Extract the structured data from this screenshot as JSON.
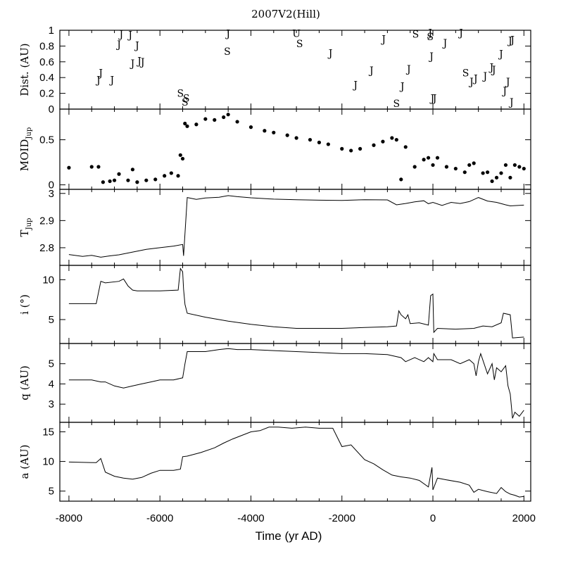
{
  "chart_data": {
    "type": "multi-panel-line-scatter",
    "title": "2007V2(Hill)",
    "xlabel": "Time (yr AD)",
    "xlim": [
      -8200,
      2150
    ],
    "xticks": [
      -8000,
      -6000,
      -4000,
      -2000,
      0,
      2000
    ],
    "xtick_labels": [
      "-8000",
      "-6000",
      "-4000",
      "-2000",
      "0",
      "2000"
    ],
    "panels": [
      {
        "id": "dist",
        "ylabel": "Dist. (AU)",
        "type": "scatter-text",
        "ylim": [
          0,
          1
        ],
        "yticks": [
          0,
          0.2,
          0.4,
          0.6,
          0.8,
          1
        ],
        "ytick_labels": [
          "0",
          "0.2",
          "0.4",
          "0.6",
          "0.8",
          "1"
        ],
        "encounters": [
          {
            "x": -7350,
            "y": 0.37,
            "planet": "J"
          },
          {
            "x": -7300,
            "y": 0.46,
            "planet": "J"
          },
          {
            "x": -7050,
            "y": 0.37,
            "planet": "J"
          },
          {
            "x": -6900,
            "y": 0.82,
            "planet": "J"
          },
          {
            "x": -6850,
            "y": 0.95,
            "planet": "J"
          },
          {
            "x": -6650,
            "y": 0.94,
            "planet": "J"
          },
          {
            "x": -6600,
            "y": 0.58,
            "planet": "J"
          },
          {
            "x": -6500,
            "y": 0.81,
            "planet": "J"
          },
          {
            "x": -6450,
            "y": 0.61,
            "planet": "J"
          },
          {
            "x": -6380,
            "y": 0.6,
            "planet": "J"
          },
          {
            "x": -5550,
            "y": 0.2,
            "planet": "S"
          },
          {
            "x": -5450,
            "y": 0.09,
            "planet": "S"
          },
          {
            "x": -5420,
            "y": 0.14,
            "planet": "S"
          },
          {
            "x": -4500,
            "y": 0.96,
            "planet": "J"
          },
          {
            "x": -4520,
            "y": 0.73,
            "planet": "S"
          },
          {
            "x": -3000,
            "y": 0.96,
            "planet": "U"
          },
          {
            "x": -2930,
            "y": 0.83,
            "planet": "S"
          },
          {
            "x": -2250,
            "y": 0.71,
            "planet": "J"
          },
          {
            "x": -1700,
            "y": 0.31,
            "planet": "J"
          },
          {
            "x": -1350,
            "y": 0.49,
            "planet": "J"
          },
          {
            "x": -1080,
            "y": 0.89,
            "planet": "J"
          },
          {
            "x": -800,
            "y": 0.07,
            "planet": "S"
          },
          {
            "x": -670,
            "y": 0.29,
            "planet": "J"
          },
          {
            "x": -530,
            "y": 0.51,
            "planet": "J"
          },
          {
            "x": -380,
            "y": 0.95,
            "planet": "S"
          },
          {
            "x": -60,
            "y": 0.97,
            "planet": "J"
          },
          {
            "x": -60,
            "y": 0.92,
            "planet": "S"
          },
          {
            "x": -30,
            "y": 0.67,
            "planet": "J"
          },
          {
            "x": -10,
            "y": 0.14,
            "planet": "J"
          },
          {
            "x": 40,
            "y": 0.14,
            "planet": "J"
          },
          {
            "x": 270,
            "y": 0.84,
            "planet": "J"
          },
          {
            "x": 620,
            "y": 0.97,
            "planet": "J"
          },
          {
            "x": 720,
            "y": 0.46,
            "planet": "S"
          },
          {
            "x": 850,
            "y": 0.35,
            "planet": "J"
          },
          {
            "x": 940,
            "y": 0.39,
            "planet": "J"
          },
          {
            "x": 1150,
            "y": 0.42,
            "planet": "J"
          },
          {
            "x": 1290,
            "y": 0.53,
            "planet": "J"
          },
          {
            "x": 1340,
            "y": 0.5,
            "planet": "J"
          },
          {
            "x": 1500,
            "y": 0.7,
            "planet": "J"
          },
          {
            "x": 1580,
            "y": 0.23,
            "planet": "J"
          },
          {
            "x": 1650,
            "y": 0.35,
            "planet": "J"
          },
          {
            "x": 1700,
            "y": 0.87,
            "planet": "J"
          },
          {
            "x": 1750,
            "y": 0.88,
            "planet": "J"
          },
          {
            "x": 1730,
            "y": 0.09,
            "planet": "J"
          }
        ]
      },
      {
        "id": "moid",
        "ylabel": "MOID",
        "ylabel_sub": "Jup",
        "type": "scatter",
        "ylim": [
          -0.05,
          0.84
        ],
        "yticks": [
          0,
          0.5
        ],
        "ytick_labels": [
          "0",
          "0.5"
        ],
        "x": [
          -8000,
          -7500,
          -7350,
          -7250,
          -7100,
          -7000,
          -6900,
          -6700,
          -6600,
          -6500,
          -6300,
          -6100,
          -5900,
          -5750,
          -5600,
          -5550,
          -5500,
          -5450,
          -5400,
          -5200,
          -5000,
          -4800,
          -4600,
          -4500,
          -4300,
          -4000,
          -3700,
          -3500,
          -3200,
          -3000,
          -2700,
          -2500,
          -2300,
          -2000,
          -1800,
          -1600,
          -1300,
          -1100,
          -900,
          -800,
          -700,
          -600,
          -400,
          -200,
          -100,
          0,
          100,
          300,
          500,
          700,
          800,
          900,
          1100,
          1200,
          1300,
          1400,
          1500,
          1600,
          1700,
          1800,
          1900,
          2000
        ],
        "y": [
          0.19,
          0.2,
          0.2,
          0.03,
          0.04,
          0.05,
          0.12,
          0.05,
          0.17,
          0.03,
          0.05,
          0.06,
          0.1,
          0.13,
          0.1,
          0.33,
          0.29,
          0.68,
          0.65,
          0.67,
          0.73,
          0.72,
          0.75,
          0.78,
          0.7,
          0.64,
          0.6,
          0.58,
          0.55,
          0.52,
          0.5,
          0.47,
          0.45,
          0.4,
          0.38,
          0.4,
          0.44,
          0.48,
          0.52,
          0.5,
          0.06,
          0.42,
          0.2,
          0.28,
          0.3,
          0.22,
          0.3,
          0.2,
          0.18,
          0.14,
          0.22,
          0.24,
          0.13,
          0.14,
          0.04,
          0.08,
          0.13,
          0.22,
          0.08,
          0.22,
          0.2,
          0.18
        ]
      },
      {
        "id": "tjup",
        "ylabel": "T",
        "ylabel_sub": "Jup",
        "type": "line",
        "ylim": [
          2.735,
          3.015
        ],
        "yticks": [
          2.8,
          2.9,
          3
        ],
        "ytick_labels": [
          "2.8",
          "2.9",
          "3"
        ],
        "x": [
          -8000,
          -7700,
          -7500,
          -7300,
          -7100,
          -6900,
          -6600,
          -6300,
          -6000,
          -5700,
          -5500,
          -5480,
          -5400,
          -5200,
          -5000,
          -4700,
          -4500,
          -4300,
          -4000,
          -3500,
          -3000,
          -2500,
          -2000,
          -1500,
          -1000,
          -800,
          -600,
          -400,
          -200,
          -100,
          0,
          200,
          400,
          600,
          800,
          1000,
          1200,
          1400,
          1600,
          1700,
          2000
        ],
        "y": [
          2.775,
          2.768,
          2.772,
          2.765,
          2.77,
          2.774,
          2.784,
          2.794,
          2.8,
          2.806,
          2.812,
          2.77,
          2.985,
          2.978,
          2.983,
          2.986,
          2.992,
          2.988,
          2.984,
          2.979,
          2.977,
          2.975,
          2.974,
          2.977,
          2.976,
          2.958,
          2.963,
          2.969,
          2.973,
          2.962,
          2.967,
          2.956,
          2.967,
          2.963,
          2.97,
          2.985,
          2.972,
          2.967,
          2.958,
          2.954,
          2.957
        ]
      },
      {
        "id": "incl",
        "ylabel": "i (°)",
        "type": "line",
        "ylim": [
          2.0,
          11.8
        ],
        "yticks": [
          5,
          10
        ],
        "ytick_labels": [
          "5",
          "10"
        ],
        "x": [
          -8000,
          -7400,
          -7300,
          -7200,
          -6900,
          -6800,
          -6700,
          -6600,
          -6500,
          -6000,
          -5600,
          -5550,
          -5500,
          -5480,
          -5450,
          -5400,
          -5000,
          -4500,
          -4000,
          -3500,
          -3000,
          -2500,
          -2000,
          -1500,
          -1000,
          -800,
          -750,
          -700,
          -600,
          -550,
          -500,
          -300,
          -100,
          -50,
          0,
          20,
          100,
          500,
          900,
          1100,
          1300,
          1500,
          1550,
          1700,
          1750,
          2000
        ],
        "y": [
          7.0,
          7.0,
          9.8,
          9.6,
          9.8,
          10.1,
          9.2,
          8.7,
          8.6,
          8.6,
          8.7,
          11.4,
          11.0,
          8.8,
          6.9,
          5.8,
          5.3,
          4.8,
          4.4,
          4.1,
          3.9,
          3.9,
          3.9,
          4.0,
          4.1,
          4.2,
          6.1,
          5.6,
          5.1,
          5.6,
          4.5,
          4.6,
          4.3,
          8.0,
          8.2,
          3.4,
          3.9,
          3.8,
          3.9,
          4.2,
          4.1,
          4.6,
          5.8,
          5.6,
          2.7,
          2.8
        ]
      },
      {
        "id": "q",
        "ylabel": "q (AU)",
        "type": "line",
        "ylim": [
          2.1,
          6.0
        ],
        "yticks": [
          3,
          4,
          5
        ],
        "ytick_labels": [
          "3",
          "4",
          "5"
        ],
        "x": [
          -8000,
          -7500,
          -7300,
          -7200,
          -7000,
          -6800,
          -6600,
          -6400,
          -6200,
          -6000,
          -5700,
          -5500,
          -5450,
          -5400,
          -5200,
          -5000,
          -4700,
          -4500,
          -4300,
          -4000,
          -3500,
          -3000,
          -2500,
          -2000,
          -1500,
          -1000,
          -700,
          -600,
          -400,
          -200,
          -100,
          0,
          20,
          100,
          400,
          600,
          800,
          900,
          950,
          1000,
          1050,
          1200,
          1300,
          1350,
          1400,
          1500,
          1600,
          1650,
          1700,
          1750,
          1800,
          1900,
          2000
        ],
        "y": [
          4.2,
          4.2,
          4.1,
          4.1,
          3.9,
          3.8,
          3.9,
          4.0,
          4.1,
          4.2,
          4.2,
          4.3,
          5.0,
          5.6,
          5.6,
          5.6,
          5.7,
          5.75,
          5.7,
          5.7,
          5.65,
          5.6,
          5.55,
          5.5,
          5.5,
          5.45,
          5.3,
          5.1,
          5.3,
          5.1,
          5.3,
          5.1,
          5.5,
          5.2,
          5.2,
          5.0,
          5.2,
          5.0,
          4.4,
          5.1,
          5.5,
          4.5,
          5.0,
          4.2,
          4.8,
          4.6,
          4.9,
          3.9,
          3.5,
          2.3,
          2.6,
          2.4,
          2.7
        ]
      },
      {
        "id": "a",
        "ylabel": "a (AU)",
        "type": "line",
        "ylim": [
          3.3,
          16.6
        ],
        "yticks": [
          5,
          10,
          15
        ],
        "ytick_labels": [
          "5",
          "10",
          "15"
        ],
        "x": [
          -8000,
          -7400,
          -7300,
          -7200,
          -7000,
          -6800,
          -6600,
          -6400,
          -6200,
          -6000,
          -5700,
          -5550,
          -5500,
          -5400,
          -5100,
          -4800,
          -4600,
          -4400,
          -4000,
          -3800,
          -3600,
          -3400,
          -3100,
          -2800,
          -2500,
          -2200,
          -2000,
          -1800,
          -1500,
          -1300,
          -1100,
          -900,
          -700,
          -500,
          -300,
          -100,
          -20,
          0,
          100,
          300,
          600,
          800,
          900,
          1000,
          1200,
          1400,
          1500,
          1600,
          1700,
          1800,
          1900,
          2000
        ],
        "y": [
          9.9,
          9.8,
          10.5,
          8.2,
          7.5,
          7.2,
          7.0,
          7.3,
          8.0,
          8.5,
          8.5,
          8.7,
          10.8,
          10.9,
          11.5,
          12.3,
          13.1,
          13.8,
          15.0,
          15.2,
          15.8,
          15.8,
          15.6,
          15.8,
          15.6,
          15.6,
          12.5,
          12.8,
          10.3,
          9.6,
          8.6,
          7.7,
          7.4,
          7.2,
          6.8,
          5.7,
          9.0,
          5.2,
          7.2,
          6.9,
          6.5,
          6.0,
          4.8,
          5.3,
          4.9,
          4.6,
          5.6,
          4.9,
          4.5,
          4.3,
          4.0,
          4.1
        ]
      }
    ]
  }
}
